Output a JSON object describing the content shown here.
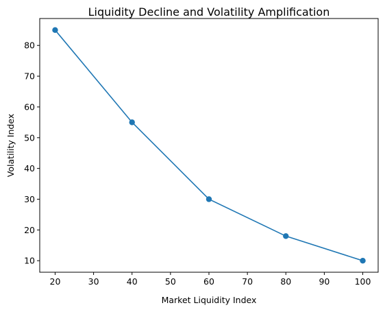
{
  "chart_data": {
    "type": "line",
    "title": "Liquidity Decline and Volatility Amplification",
    "xlabel": "Market Liquidity Index",
    "ylabel": "Volatility Index",
    "x": [
      20,
      40,
      60,
      80,
      100
    ],
    "series": [
      {
        "values": [
          85,
          55,
          30,
          18,
          10
        ],
        "color": "#1f77b4",
        "marker": "circle"
      }
    ],
    "xlim": [
      16,
      104
    ],
    "ylim": [
      6.25,
      88.75
    ],
    "xticks": [
      20,
      30,
      40,
      50,
      60,
      70,
      80,
      90,
      100
    ],
    "yticks": [
      10,
      20,
      30,
      40,
      50,
      60,
      70,
      80
    ],
    "grid": false,
    "legend": "none"
  }
}
